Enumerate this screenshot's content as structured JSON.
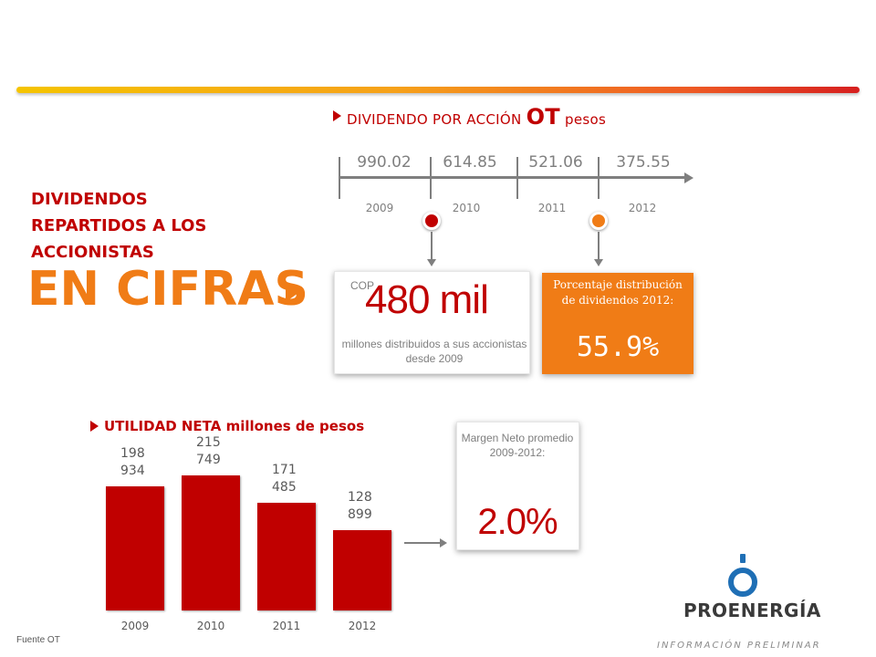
{
  "dividend_section": {
    "title_prefix": "DIVIDENDO POR ACCIÓN",
    "title_company": "OT",
    "title_suffix": "pesos"
  },
  "left_heading": {
    "line1": "DIVIDENDOS",
    "line2": "REPARTIDOS A LOS",
    "line3": "ACCIONISTAS",
    "big_title": "EN CIFRAS"
  },
  "distributed_card": {
    "currency": "COP",
    "value": "480 mil",
    "description": "millones distribuidos a sus accionistas desde 2009"
  },
  "payout_card": {
    "title": "Porcentaje distribución de dividendos 2012:",
    "value": "55.9%"
  },
  "utilidad_section": {
    "title": "UTILIDAD NETA millones de pesos"
  },
  "margin_card": {
    "label": "Margen Neto promedio 2009-2012:",
    "value": "2.0%"
  },
  "logo": {
    "name": "PROENERGÍA"
  },
  "footer": {
    "preliminary": "INFORMACIÓN PRELIMINAR",
    "source": "Fuente OT"
  },
  "colors": {
    "red": "#c00000",
    "orange": "#f07c16",
    "gray": "#7f7f7f",
    "logo_blue": "#1f6fb5"
  },
  "chart_data": [
    {
      "type": "table",
      "title": "DIVIDENDO POR ACCIÓN OT pesos",
      "categories": [
        "2009",
        "2010",
        "2011",
        "2012"
      ],
      "values": [
        990.02,
        614.85,
        521.06,
        375.55
      ],
      "value_labels": [
        "990.02",
        "614.85",
        "521.06",
        "375.55"
      ]
    },
    {
      "type": "bar",
      "title": "UTILIDAD NETA millones de pesos",
      "categories": [
        "2009",
        "2010",
        "2011",
        "2012"
      ],
      "values": [
        198934,
        215749,
        171485,
        128899
      ],
      "value_labels": [
        "198\n934",
        "215\n749",
        "171\n485",
        "128\n899"
      ],
      "ylim": [
        0,
        215749
      ],
      "grid": false
    }
  ]
}
